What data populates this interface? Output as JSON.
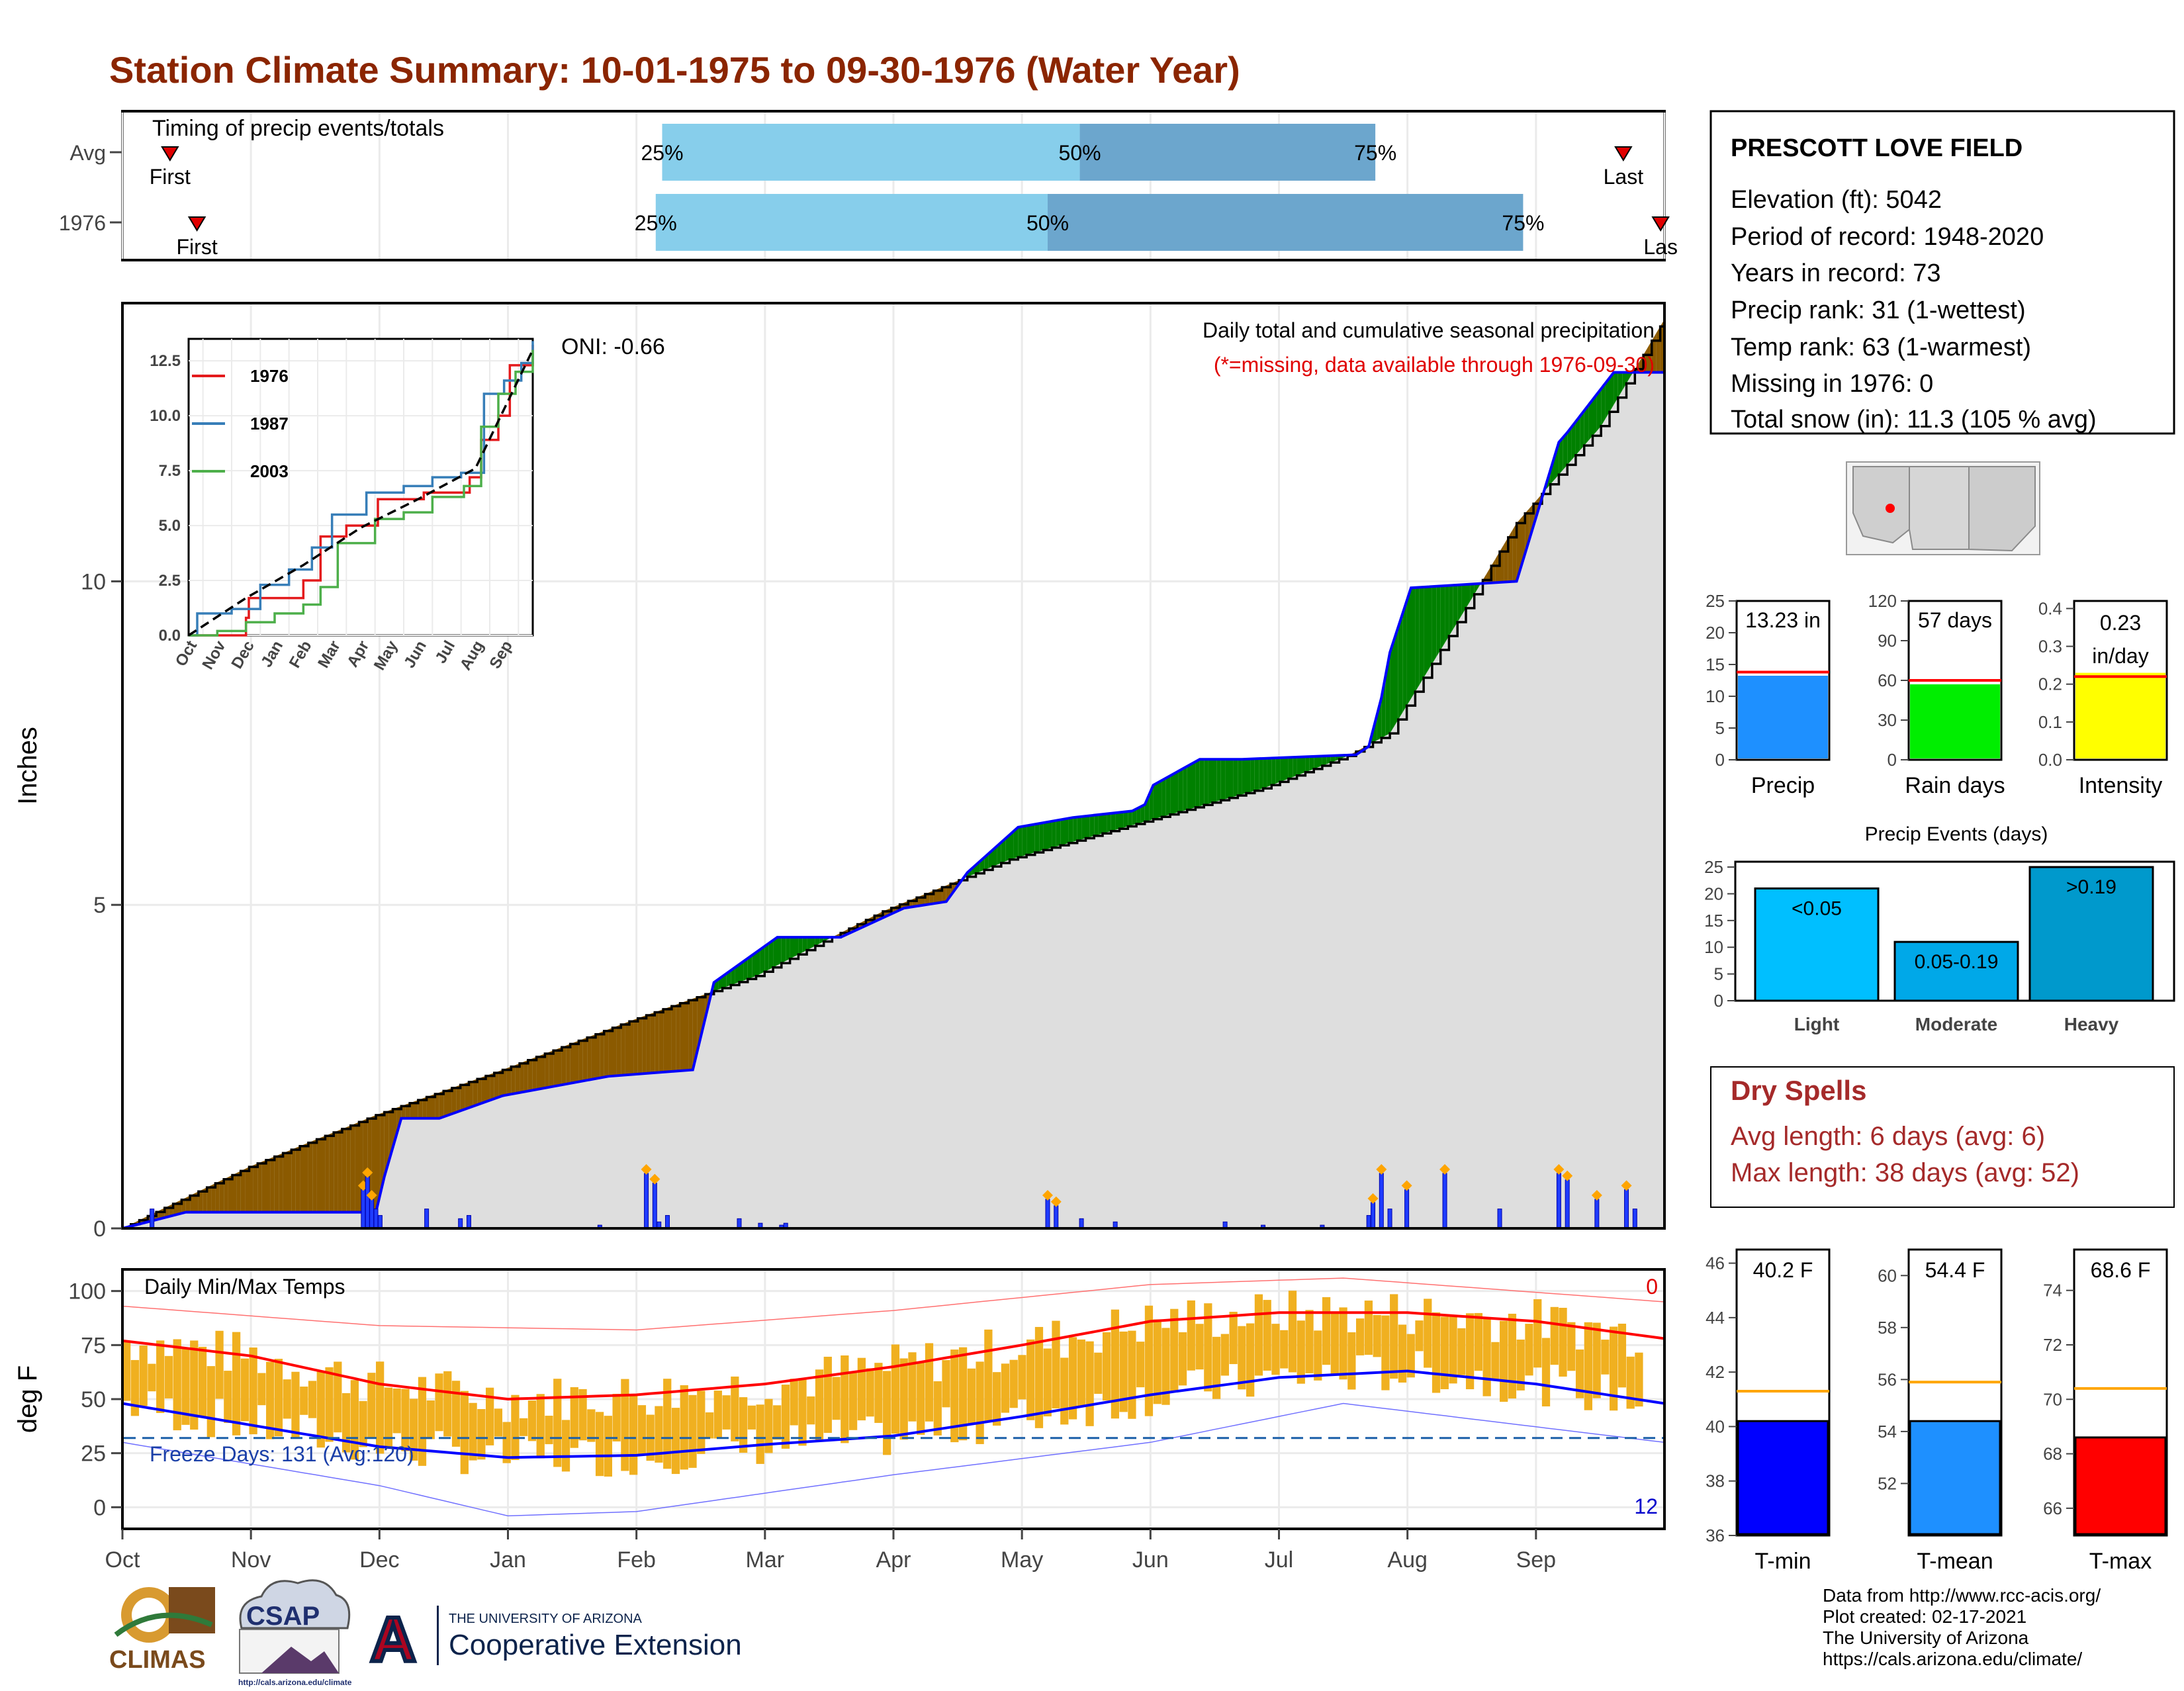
{
  "title": "Station Climate Summary: 10-01-1975 to 09-30-1976 (Water Year)",
  "timing_panel": {
    "label": "Timing of precip events/totals",
    "rows": [
      {
        "name": "Avg",
        "first_label": "First",
        "last_label": "Last",
        "first_month": 0.37,
        "last_month": 11.68,
        "p25": 4.2,
        "p50": 7.45,
        "p75": 9.75
      },
      {
        "name": "1976",
        "first_label": "First",
        "last_label": "Las",
        "first_month": 0.58,
        "last_month": 11.97,
        "p25": 4.15,
        "p50": 7.2,
        "p75": 10.9
      }
    ],
    "pct_labels": [
      "25%",
      "50%",
      "75%"
    ]
  },
  "precip_panel": {
    "ylabel": "Inches",
    "yticks": [
      "0",
      "5",
      "10"
    ],
    "oni": "ONI: -0.66",
    "caption": "Daily total and cumulative seasonal precipitation",
    "missing_note": "(*=missing, data available through 1976-09-30)"
  },
  "inset": {
    "yticks": [
      "0.0",
      "2.5",
      "5.0",
      "7.5",
      "10.0",
      "12.5"
    ],
    "xticks": [
      "Oct",
      "Nov",
      "Dec",
      "Jan",
      "Feb",
      "Mar",
      "Apr",
      "May",
      "Jun",
      "Jul",
      "Aug",
      "Sep"
    ],
    "legend": [
      {
        "name": "1976",
        "color": "#e41a1c"
      },
      {
        "name": "1987",
        "color": "#377eb8"
      },
      {
        "name": "2003",
        "color": "#4daf4a"
      }
    ]
  },
  "temp_panel": {
    "ylabel": "deg F",
    "label": "Daily Min/Max Temps",
    "yticks": [
      "0",
      "25",
      "50",
      "75",
      "100"
    ],
    "freeze_label": "Freeze Days: 131 (Avg:120)",
    "hot_count": "0",
    "cold_count": "12"
  },
  "months": [
    "Oct",
    "Nov",
    "Dec",
    "Jan",
    "Feb",
    "Mar",
    "Apr",
    "May",
    "Jun",
    "Jul",
    "Aug",
    "Sep"
  ],
  "station": {
    "name": "PRESCOTT LOVE FIELD",
    "lines": [
      "Elevation (ft): 5042",
      "Period of record: 1948-2020",
      "Years in record: 73",
      "Precip rank: 31 (1-wettest)",
      "Temp rank: 63 (1-warmest)",
      "Missing in 1976: 0",
      "Total snow (in): 11.3 (105 % avg)"
    ]
  },
  "summary_bars": [
    {
      "label": "Precip",
      "value_text": "13.23 in",
      "yticks": [
        "0",
        "5",
        "10",
        "15",
        "20",
        "25"
      ],
      "ymax": 25,
      "value": 13.23,
      "avg": 13.8,
      "color": "#1e90ff"
    },
    {
      "label": "Rain days",
      "value_text": "57 days",
      "yticks": [
        "0",
        "30",
        "60",
        "90",
        "120"
      ],
      "ymax": 120,
      "value": 57,
      "avg": 60,
      "color": "#00ee00"
    },
    {
      "label": "Intensity",
      "value_text": "0.23 in/day",
      "value_line1": "0.23",
      "value_line2": "in/day",
      "yticks": [
        "0.0",
        "0.1",
        "0.2",
        "0.3",
        "0.4"
      ],
      "ymax": 0.42,
      "value": 0.23,
      "avg": 0.22,
      "color": "#ffff00"
    }
  ],
  "events": {
    "title": "Precip Events (days)",
    "yticks": [
      "0",
      "5",
      "10",
      "15",
      "20",
      "25"
    ],
    "bars": [
      {
        "category": "Light",
        "range": "<0.05",
        "value": 21,
        "color": "#00bfff"
      },
      {
        "category": "Moderate",
        "range": "0.05-0.19",
        "value": 11,
        "color": "#00a8e8"
      },
      {
        "category": "Heavy",
        "range": ">0.19",
        "value": 25,
        "color": "#0099cc"
      }
    ]
  },
  "dry_spells": {
    "title": "Dry Spells",
    "avg_line": "Avg length: 6 days (avg: 6)",
    "max_line": "Max length: 38 days (avg: 52)"
  },
  "temp_bars": [
    {
      "label": "T-min",
      "value_text": "40.2 F",
      "value": 40.2,
      "avg": 41.3,
      "ymin": 36,
      "ymax": 46.5,
      "yticks": [
        "36",
        "38",
        "40",
        "42",
        "44",
        "46"
      ],
      "color": "#0000ff"
    },
    {
      "label": "T-mean",
      "value_text": "54.4 F",
      "value": 54.4,
      "avg": 55.9,
      "ymin": 50,
      "ymax": 61,
      "yticks": [
        "52",
        "54",
        "56",
        "58",
        "60"
      ],
      "color": "#1e90ff"
    },
    {
      "label": "T-max",
      "value_text": "68.6 F",
      "value": 68.6,
      "avg": 70.4,
      "ymin": 65,
      "ymax": 75.5,
      "yticks": [
        "66",
        "68",
        "70",
        "72",
        "74"
      ],
      "color": "#ff0000"
    }
  ],
  "credits": [
    "Data from http://www.rcc-acis.org/",
    "Plot created: 02-17-2021",
    "The University of Arizona",
    "https://cals.arizona.edu/climate/"
  ],
  "logos": {
    "climas": "CLIMAS",
    "csap": "CSAP",
    "csap_url": "http://cals.arizona.edu/climate",
    "ua_line1": "THE UNIVERSITY OF ARIZONA",
    "ua_line2": "Cooperative Extension",
    "ua_mark": "A"
  },
  "colors": {
    "title": "#8b2500",
    "below_avg": "#8b5a00",
    "above_avg": "#008000",
    "cumulative": "#0000ff",
    "avg_fill": "#dedede",
    "temp_bar": "#f0b020"
  },
  "chart_data": [
    {
      "type": "area",
      "title": "Daily total and cumulative seasonal precipitation",
      "ylabel": "Inches",
      "ylim": [
        0,
        14.3
      ],
      "x_axis": "day of water year (Oct 1 = 0)",
      "cumulative_1976": {
        "x": [
          0,
          15,
          30,
          60,
          62,
          66,
          75,
          90,
          115,
          135,
          140,
          155,
          170,
          185,
          195,
          200,
          212,
          225,
          239,
          242,
          244,
          255,
          265,
          292,
          295,
          298,
          300,
          305,
          330,
          340,
          342,
          353,
          365
        ],
        "y": [
          0,
          0.25,
          0.25,
          0.25,
          0.8,
          1.7,
          1.7,
          2.05,
          2.35,
          2.45,
          3.8,
          4.5,
          4.5,
          4.95,
          5.05,
          5.5,
          6.2,
          6.35,
          6.45,
          6.55,
          6.85,
          7.25,
          7.25,
          7.32,
          7.45,
          8.2,
          8.9,
          9.9,
          10,
          12.15,
          12.3,
          13.23,
          13.23
        ]
      },
      "cumulative_average": {
        "x": [
          0,
          30,
          60,
          90,
          120,
          150,
          180,
          210,
          240,
          270,
          290,
          300,
          320,
          330,
          350,
          365
        ],
        "y": [
          0,
          0.95,
          1.75,
          2.45,
          3.2,
          3.9,
          4.9,
          5.7,
          6.25,
          6.8,
          7.3,
          7.65,
          9.8,
          10.9,
          12.4,
          14.05
        ]
      },
      "daily_totals": {
        "x": [
          7,
          57,
          58,
          59,
          60,
          61,
          72,
          80,
          82,
          113,
          124,
          126,
          127,
          129,
          146,
          151,
          156,
          157,
          219,
          221,
          227,
          235,
          261,
          270,
          284,
          295,
          296,
          298,
          300,
          304,
          313,
          326,
          340,
          342,
          349,
          356,
          358
        ],
        "y": [
          0.3,
          0.6,
          0.8,
          0.45,
          0.3,
          0.2,
          0.3,
          0.15,
          0.2,
          0.05,
          0.85,
          0.7,
          0.1,
          0.2,
          0.15,
          0.08,
          0.05,
          0.08,
          0.45,
          0.35,
          0.15,
          0.1,
          0.1,
          0.05,
          0.05,
          0.2,
          0.4,
          0.85,
          0.3,
          0.6,
          0.85,
          0.3,
          0.85,
          0.75,
          0.45,
          0.6,
          0.3
        ]
      }
    },
    {
      "type": "line",
      "title": "",
      "ylim": [
        0,
        13.5
      ],
      "x_axis": "month index (Oct = 0)",
      "series": [
        {
          "name": "1976",
          "x": [
            0,
            2,
            2.1,
            4,
            4.6,
            5.5,
            6.6,
            8.2,
            9.8,
            10.2,
            10.8,
            11.2,
            12
          ],
          "y": [
            0,
            0.8,
            1.7,
            2.5,
            4.5,
            5.0,
            6.2,
            6.5,
            7.2,
            8.9,
            10.0,
            12.3,
            13.23
          ]
        },
        {
          "name": "1987",
          "x": [
            0,
            0.3,
            1.5,
            2.5,
            3.5,
            4.3,
            5.0,
            6.2,
            7.5,
            8.5,
            9.5,
            10.3,
            11.0,
            11.6,
            12
          ],
          "y": [
            0,
            1.0,
            1.2,
            2.3,
            3.0,
            4.0,
            5.5,
            6.5,
            6.8,
            7.2,
            7.4,
            11.0,
            11.6,
            12.4,
            13.4
          ]
        },
        {
          "name": "2003",
          "x": [
            0,
            1,
            2,
            3,
            4,
            4.6,
            5.2,
            6.5,
            7.5,
            8.5,
            9.6,
            10.2,
            10.8,
            11.4,
            12
          ],
          "y": [
            0,
            0.2,
            0.6,
            1.0,
            1.4,
            2.2,
            4.2,
            5.3,
            5.6,
            6.3,
            6.8,
            9.5,
            11.0,
            12.0,
            13.0
          ]
        },
        {
          "name": "average",
          "x": [
            0,
            2,
            4,
            6,
            8,
            10,
            12
          ],
          "y": [
            0,
            1.7,
            3.2,
            4.9,
            6.2,
            7.6,
            13.0
          ]
        }
      ]
    },
    {
      "type": "line",
      "title": "Daily Min/Max Temps",
      "ylabel": "deg F",
      "ylim": [
        -10,
        110
      ],
      "x_axis": "month index (Oct = 0)",
      "series": [
        {
          "name": "avg max",
          "x": [
            0,
            1,
            2,
            3,
            4,
            5,
            6,
            7,
            8,
            9,
            10,
            11,
            12
          ],
          "y": [
            77,
            70,
            57,
            50,
            52,
            57,
            65,
            75,
            86,
            90,
            90,
            86,
            78
          ]
        },
        {
          "name": "avg min",
          "x": [
            0,
            1,
            2,
            3,
            4,
            5,
            6,
            7,
            8,
            9,
            10,
            11,
            12
          ],
          "y": [
            48,
            38,
            28,
            23,
            24,
            29,
            33,
            42,
            52,
            60,
            63,
            57,
            48
          ]
        },
        {
          "name": "record max",
          "x": [
            0,
            2,
            4,
            6,
            8,
            9.5,
            12
          ],
          "y": [
            93,
            84,
            82,
            91,
            103,
            106,
            95
          ]
        },
        {
          "name": "record min",
          "x": [
            0,
            2,
            3,
            4,
            6,
            8,
            9.5,
            12
          ],
          "y": [
            30,
            10,
            -4,
            -2,
            15,
            30,
            48,
            30
          ]
        }
      ],
      "freeze_line": 32
    },
    {
      "type": "bar",
      "categories": [
        "Precip",
        "Rain days",
        "Intensity"
      ],
      "values": [
        13.23,
        57,
        0.23
      ]
    },
    {
      "type": "bar",
      "title": "Precip Events (days)",
      "categories": [
        "Light",
        "Moderate",
        "Heavy"
      ],
      "values": [
        21,
        11,
        25
      ]
    },
    {
      "type": "bar",
      "categories": [
        "T-min",
        "T-mean",
        "T-max"
      ],
      "values": [
        40.2,
        54.4,
        68.6
      ]
    }
  ]
}
